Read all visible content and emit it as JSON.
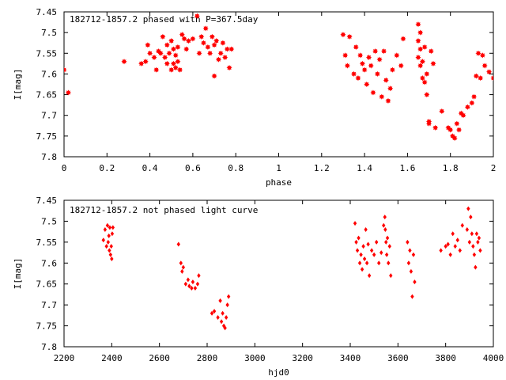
{
  "chart_data": [
    {
      "type": "scatter",
      "title": "182712-1857.2 phased with P=367.5day",
      "xlabel": "phase",
      "ylabel": "I[mag]",
      "xlim": [
        0,
        2
      ],
      "ylim": [
        7.45,
        7.8
      ],
      "y_inverted": true,
      "xticks": [
        "0",
        "0.2",
        "0.4",
        "0.6",
        "0.8",
        "1",
        "1.2",
        "1.4",
        "1.6",
        "1.8",
        "2"
      ],
      "yticks": [
        "7.45",
        "7.5",
        "7.55",
        "7.6",
        "7.65",
        "7.7",
        "7.75",
        "7.8"
      ],
      "grid": false,
      "marker": "filled-star",
      "color": "#ff0000",
      "series": [
        {
          "x": [
            0.0,
            0.02,
            0.28,
            0.36,
            0.38,
            0.39,
            0.4,
            0.42,
            0.43,
            0.44,
            0.45,
            0.46,
            0.47,
            0.48,
            0.48,
            0.49,
            0.5,
            0.5,
            0.51,
            0.51,
            0.52,
            0.52,
            0.53,
            0.53,
            0.54,
            0.55,
            0.56,
            0.57,
            0.58,
            0.6,
            0.62,
            0.63,
            0.64,
            0.65,
            0.66,
            0.67,
            0.68,
            0.69,
            0.7,
            0.7,
            0.71,
            0.72,
            0.73,
            0.74,
            0.75,
            0.76,
            0.77,
            0.78,
            1.3,
            1.31,
            1.32,
            1.33,
            1.35,
            1.36,
            1.37,
            1.38,
            1.39,
            1.4,
            1.41,
            1.42,
            1.43,
            1.44,
            1.45,
            1.46,
            1.47,
            1.48,
            1.49,
            1.5,
            1.51,
            1.52,
            1.53,
            1.55,
            1.57,
            1.58,
            1.65,
            1.65,
            1.65,
            1.66,
            1.66,
            1.66,
            1.67,
            1.67,
            1.68,
            1.68,
            1.69,
            1.69,
            1.7,
            1.7,
            1.71,
            1.72,
            1.73,
            1.76,
            1.79,
            1.8,
            1.81,
            1.82,
            1.83,
            1.84,
            1.85,
            1.86,
            1.88,
            1.9,
            1.91,
            1.92,
            1.93,
            1.94,
            1.95,
            1.96,
            1.98,
            2.0
          ],
          "y": [
            7.59,
            7.645,
            7.57,
            7.575,
            7.57,
            7.53,
            7.55,
            7.56,
            7.59,
            7.545,
            7.55,
            7.51,
            7.56,
            7.53,
            7.575,
            7.55,
            7.52,
            7.59,
            7.54,
            7.575,
            7.555,
            7.585,
            7.535,
            7.57,
            7.59,
            7.505,
            7.515,
            7.54,
            7.52,
            7.515,
            7.46,
            7.55,
            7.51,
            7.525,
            7.49,
            7.535,
            7.55,
            7.51,
            7.605,
            7.53,
            7.52,
            7.565,
            7.55,
            7.525,
            7.56,
            7.54,
            7.585,
            7.54,
            7.505,
            7.555,
            7.58,
            7.51,
            7.6,
            7.535,
            7.61,
            7.555,
            7.575,
            7.59,
            7.625,
            7.56,
            7.58,
            7.645,
            7.545,
            7.6,
            7.565,
            7.655,
            7.545,
            7.615,
            7.665,
            7.635,
            7.59,
            7.555,
            7.58,
            7.515,
            7.48,
            7.52,
            7.56,
            7.5,
            7.54,
            7.58,
            7.57,
            7.61,
            7.535,
            7.62,
            7.6,
            7.65,
            7.72,
            7.715,
            7.545,
            7.575,
            7.73,
            7.69,
            7.73,
            7.735,
            7.75,
            7.755,
            7.72,
            7.735,
            7.695,
            7.7,
            7.68,
            7.67,
            7.655,
            7.605,
            7.55,
            7.61,
            7.555,
            7.58,
            7.595,
            7.61
          ]
        }
      ]
    },
    {
      "type": "scatter",
      "title": "182712-1857.2 not phased light curve",
      "xlabel": "hjd0",
      "ylabel": "I[mag]",
      "xlim": [
        2200,
        4000
      ],
      "ylim": [
        7.45,
        7.8
      ],
      "y_inverted": true,
      "xticks": [
        "2200",
        "2400",
        "2600",
        "2800",
        "3000",
        "3200",
        "3400",
        "3600",
        "3800",
        "4000"
      ],
      "yticks": [
        "7.45",
        "7.5",
        "7.55",
        "7.6",
        "7.65",
        "7.7",
        "7.75",
        "7.8"
      ],
      "grid": false,
      "marker": "diamond",
      "color": "#ff0000",
      "series": [
        {
          "x": [
            2365,
            2372,
            2378,
            2382,
            2385,
            2388,
            2390,
            2392,
            2395,
            2398,
            2400,
            2402,
            2405,
            2680,
            2690,
            2695,
            2700,
            2710,
            2720,
            2725,
            2735,
            2740,
            2750,
            2760,
            2765,
            2820,
            2830,
            2845,
            2855,
            2860,
            2865,
            2870,
            2875,
            2880,
            2885,
            2890,
            3420,
            3425,
            3430,
            3435,
            3440,
            3445,
            3450,
            3455,
            3460,
            3465,
            3470,
            3475,
            3480,
            3490,
            3500,
            3510,
            3520,
            3530,
            3540,
            3545,
            3547,
            3550,
            3553,
            3556,
            3560,
            3565,
            3570,
            3640,
            3645,
            3650,
            3655,
            3660,
            3665,
            3670,
            3780,
            3800,
            3810,
            3820,
            3830,
            3840,
            3850,
            3860,
            3870,
            3890,
            3895,
            3900,
            3905,
            3910,
            3915,
            3920,
            3925,
            3930,
            3935,
            3940,
            3945
          ],
          "y": [
            7.545,
            7.52,
            7.56,
            7.51,
            7.55,
            7.535,
            7.57,
            7.515,
            7.58,
            7.56,
            7.59,
            7.53,
            7.515,
            7.555,
            7.6,
            7.62,
            7.61,
            7.65,
            7.64,
            7.655,
            7.66,
            7.645,
            7.66,
            7.65,
            7.63,
            7.72,
            7.715,
            7.73,
            7.69,
            7.74,
            7.72,
            7.75,
            7.755,
            7.73,
            7.7,
            7.68,
            7.505,
            7.55,
            7.57,
            7.54,
            7.6,
            7.58,
            7.615,
            7.56,
            7.59,
            7.52,
            7.6,
            7.555,
            7.63,
            7.57,
            7.58,
            7.55,
            7.6,
            7.575,
            7.51,
            7.49,
            7.52,
            7.55,
            7.58,
            7.54,
            7.6,
            7.56,
            7.63,
            7.55,
            7.6,
            7.57,
            7.62,
            7.68,
            7.58,
            7.645,
            7.57,
            7.56,
            7.555,
            7.58,
            7.53,
            7.56,
            7.545,
            7.57,
            7.51,
            7.52,
            7.47,
            7.55,
            7.49,
            7.53,
            7.56,
            7.58,
            7.61,
            7.53,
            7.55,
            7.54,
            7.57
          ]
        }
      ]
    }
  ]
}
